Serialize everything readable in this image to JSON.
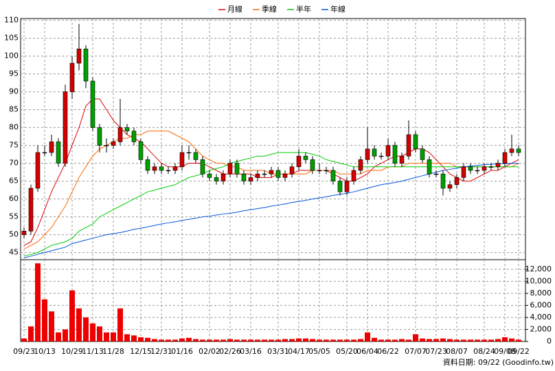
{
  "chart_data": {
    "type": "candlestick",
    "categories": [
      "09/23",
      null,
      null,
      "10/13",
      null,
      null,
      null,
      "10/29",
      null,
      null,
      "11/13",
      null,
      null,
      "11/28",
      null,
      null,
      null,
      "12/15",
      null,
      null,
      "12/31",
      null,
      null,
      "01/16",
      null,
      null,
      null,
      "02/02",
      null,
      null,
      "02/26",
      null,
      null,
      "03/16",
      null,
      null,
      null,
      "03/31",
      null,
      null,
      "04/17",
      null,
      null,
      "05/05",
      null,
      null,
      null,
      "05/20",
      null,
      null,
      "06/04",
      null,
      null,
      "06/22",
      null,
      null,
      null,
      "07/07",
      null,
      null,
      "07/23",
      null,
      null,
      "08/07",
      null,
      null,
      null,
      "08/24",
      null,
      null,
      "09/08",
      null,
      "09/22"
    ],
    "open": [
      50,
      51,
      63,
      73,
      73,
      76,
      70,
      90,
      98,
      102,
      93,
      80,
      75,
      75,
      76,
      80,
      79,
      76,
      71,
      68,
      69,
      68,
      68,
      69,
      73,
      73,
      71,
      67,
      66,
      65,
      67,
      70,
      67,
      65,
      66,
      67,
      67,
      68,
      66,
      67,
      69,
      72,
      71,
      68,
      68,
      68,
      65,
      62,
      65,
      68,
      71,
      74,
      72,
      72,
      75,
      70,
      72,
      78,
      74,
      71,
      67,
      67,
      63,
      64,
      66,
      69,
      68,
      68,
      69,
      69,
      70,
      73,
      74
    ],
    "high": [
      52,
      64,
      75,
      75,
      78,
      77,
      92,
      100,
      109,
      103,
      94,
      81,
      77,
      77,
      88,
      81,
      80,
      77,
      72,
      70,
      70,
      69,
      70,
      75,
      75,
      74,
      72,
      68,
      67,
      68,
      71,
      71,
      68,
      67,
      68,
      68,
      69,
      69,
      68,
      70,
      74,
      73,
      72,
      70,
      69,
      69,
      66,
      66,
      69,
      72,
      80,
      75,
      73,
      77,
      76,
      73,
      82,
      79,
      75,
      72,
      68,
      68,
      65,
      67,
      70,
      70,
      69,
      70,
      70,
      71,
      74,
      78,
      75
    ],
    "low": [
      49,
      50,
      62,
      72,
      72,
      69,
      69,
      88,
      96,
      91,
      79,
      73,
      73,
      74,
      75,
      78,
      75,
      70,
      67,
      67,
      67,
      67,
      67,
      68,
      71,
      70,
      66,
      65,
      64,
      64,
      66,
      66,
      64,
      64,
      65,
      66,
      66,
      65,
      65,
      66,
      68,
      70,
      67,
      67,
      67,
      64,
      61,
      61,
      64,
      67,
      70,
      71,
      71,
      71,
      69,
      69,
      71,
      73,
      70,
      66,
      66,
      61,
      62,
      63,
      65,
      67,
      67,
      67,
      68,
      68,
      69,
      72,
      72
    ],
    "close": [
      51,
      63,
      73,
      73,
      76,
      70,
      90,
      98,
      102,
      93,
      80,
      75,
      75,
      76,
      80,
      79,
      76,
      71,
      68,
      69,
      68,
      68,
      69,
      73,
      73,
      71,
      67,
      66,
      65,
      67,
      70,
      67,
      65,
      66,
      67,
      67,
      68,
      66,
      67,
      69,
      72,
      71,
      68,
      68,
      68,
      65,
      62,
      65,
      68,
      71,
      74,
      72,
      72,
      75,
      70,
      72,
      78,
      74,
      71,
      67,
      67,
      63,
      64,
      66,
      69,
      68,
      68,
      69,
      69,
      70,
      73,
      74,
      73
    ],
    "up_color": "#d40000",
    "down_color": "#00a000",
    "ylim": [
      43,
      110.5
    ],
    "yticks": [
      45,
      50,
      55,
      60,
      65,
      70,
      75,
      80,
      85,
      90,
      95,
      100,
      105,
      110
    ],
    "grid": true,
    "series": [
      {
        "name": "月線",
        "color": "#e00000",
        "values": [
          47,
          48,
          52,
          57,
          62,
          66,
          70,
          75,
          80,
          86,
          88,
          88,
          85,
          82,
          80,
          78,
          77,
          76,
          74,
          72,
          70,
          69,
          69,
          69,
          70,
          70,
          70,
          69,
          68,
          67,
          67,
          67,
          67,
          67,
          66,
          66,
          66,
          67,
          67,
          67,
          68,
          68,
          68,
          68,
          68,
          67,
          66,
          65,
          65,
          66,
          67,
          69,
          70,
          71,
          72,
          72,
          73,
          74,
          74,
          73,
          71,
          69,
          67,
          66,
          65,
          65,
          66,
          67,
          68,
          68,
          69,
          70,
          71
        ]
      },
      {
        "name": "季線",
        "color": "#ff6600",
        "values": [
          46,
          47,
          48,
          50,
          52,
          55,
          58,
          62,
          66,
          69,
          72,
          74,
          75,
          76,
          77,
          77,
          78,
          78,
          79,
          79,
          79,
          79,
          78,
          77,
          76,
          74,
          72,
          71,
          70,
          70,
          69,
          69,
          68,
          68,
          68,
          68,
          67,
          67,
          67,
          67,
          67,
          67,
          68,
          68,
          68,
          68,
          67,
          67,
          67,
          67,
          68,
          68,
          68,
          69,
          69,
          69,
          70,
          70,
          70,
          70,
          70,
          70,
          70,
          69,
          69,
          69,
          69,
          69,
          69,
          69,
          69,
          69,
          70
        ]
      },
      {
        "name": "半年",
        "color": "#00cc00",
        "values": [
          44,
          44.5,
          45,
          46,
          47,
          47.5,
          48,
          49,
          51,
          52,
          53,
          55,
          56,
          57,
          58,
          59,
          60,
          61,
          62,
          62.5,
          63,
          63.5,
          64,
          65,
          66,
          66.5,
          67,
          68,
          68.5,
          69,
          70,
          70.5,
          71,
          71.5,
          72,
          72,
          72.5,
          73,
          73,
          73,
          73,
          73,
          72.5,
          72,
          71,
          70.5,
          70,
          69.5,
          69,
          69,
          69,
          69,
          69,
          69,
          69,
          69,
          69,
          69,
          69,
          69,
          69,
          69,
          69,
          69,
          69,
          69,
          69,
          69,
          69,
          69,
          69,
          69,
          69
        ]
      },
      {
        "name": "年線",
        "color": "#0055dd",
        "values": [
          43.5,
          44,
          44.5,
          45,
          45.5,
          46,
          46.5,
          47.5,
          48,
          48.5,
          49,
          49.5,
          50,
          50.3,
          50.6,
          51,
          51.5,
          51.8,
          52.2,
          52.6,
          53,
          53.3,
          53.6,
          54,
          54.3,
          54.6,
          55,
          55.2,
          55.5,
          55.8,
          56,
          56.3,
          56.7,
          57,
          57.3,
          57.6,
          58,
          58.3,
          58.6,
          59,
          59.3,
          59.6,
          60,
          60.3,
          60.6,
          61,
          61.3,
          61.6,
          62,
          62.5,
          63,
          63.5,
          64,
          64.3,
          64.6,
          65,
          65.5,
          66,
          66.5,
          67,
          67.5,
          68,
          68.3,
          68.6,
          69,
          69.2,
          69.4,
          69.6,
          69.7,
          69.8,
          69.9,
          70,
          70
        ]
      }
    ],
    "volume": {
      "color": "#ee0000",
      "values": [
        500,
        2500,
        13000,
        7000,
        5000,
        1500,
        2000,
        8500,
        5500,
        4000,
        3000,
        2500,
        1500,
        1500,
        5500,
        1200,
        1000,
        700,
        600,
        400,
        300,
        300,
        300,
        500,
        600,
        400,
        300,
        300,
        300,
        300,
        400,
        300,
        300,
        300,
        300,
        300,
        300,
        300,
        400,
        400,
        500,
        500,
        400,
        300,
        300,
        300,
        300,
        300,
        300,
        400,
        1500,
        600,
        300,
        300,
        300,
        400,
        300,
        1200,
        500,
        400,
        400,
        500,
        400,
        300,
        300,
        300,
        300,
        300,
        300,
        400,
        700,
        500,
        300
      ],
      "ylim": [
        0,
        13600
      ],
      "yticks": [
        0,
        {
          "value": 2000,
          "label": "2,000"
        },
        {
          "value": 4000,
          "label": "4,000"
        },
        {
          "value": 6000,
          "label": "6,000"
        },
        {
          "value": 8000,
          "label": "8,000"
        },
        {
          "value": 10000,
          "label": "10,000"
        },
        {
          "value": 12000,
          "label": "12,000"
        }
      ]
    },
    "footer": "資料日期: 09/22 (Goodinfo.tw)"
  }
}
